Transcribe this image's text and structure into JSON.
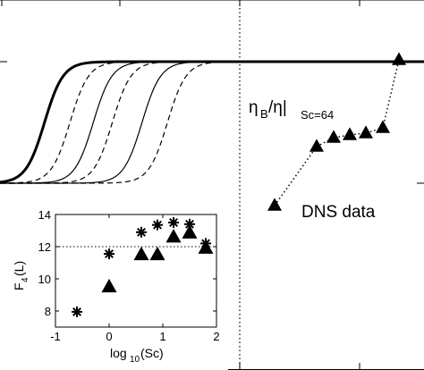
{
  "chart_data": [
    {
      "type": "line",
      "description_key": "main",
      "annotations": {
        "ratio_label_main": "η",
        "ratio_label_sub": "B",
        "ratio_label_rest": "/η|",
        "ratio_label_subscript2": "Sc=64",
        "dns_label": "DNS data"
      },
      "series": [
        {
          "style": "solid-thick",
          "center": 0.105
        },
        {
          "style": "dashed",
          "center": 0.165
        },
        {
          "style": "solid",
          "center": 0.22
        },
        {
          "style": "dashed",
          "center": 0.265
        },
        {
          "style": "solid",
          "center": 0.335
        },
        {
          "style": "dashed",
          "center": 0.395
        }
      ],
      "curve_low": 0,
      "curve_high": 1,
      "dns_points": [
        {
          "x": 0.705,
          "y": 0.12
        },
        {
          "x": 0.745,
          "y": 0.37
        },
        {
          "x": 0.785,
          "y": 0.4
        },
        {
          "x": 0.822,
          "y": 0.41
        },
        {
          "x": 0.858,
          "y": 0.42
        },
        {
          "x": 0.9,
          "y": 0.45
        },
        {
          "x": 0.94,
          "y": 1.0
        }
      ],
      "vline_x": 0.57
    },
    {
      "type": "scatter",
      "xlabel_main": "log",
      "xlabel_sub": "10",
      "xlabel_rest": "(Sc)",
      "ylabel_main": "F",
      "ylabel_sub": "4",
      "ylabel_rest": "(L)",
      "xlim": [
        -1,
        2
      ],
      "ylim": [
        7,
        14
      ],
      "xticks": [
        -1,
        0,
        1,
        2
      ],
      "yticks": [
        8,
        10,
        12,
        14
      ],
      "hline": 12,
      "series": [
        {
          "marker": "asterisk",
          "x": [
            -0.6,
            0.0,
            0.6,
            0.9,
            1.2,
            1.5,
            1.8
          ],
          "y": [
            7.95,
            11.55,
            12.9,
            13.35,
            13.5,
            13.4,
            12.2
          ]
        },
        {
          "marker": "triangle",
          "x": [
            0.0,
            0.6,
            0.9,
            1.2,
            1.5,
            1.8
          ],
          "y": [
            9.5,
            11.5,
            11.5,
            12.6,
            12.85,
            11.9
          ]
        }
      ]
    }
  ]
}
